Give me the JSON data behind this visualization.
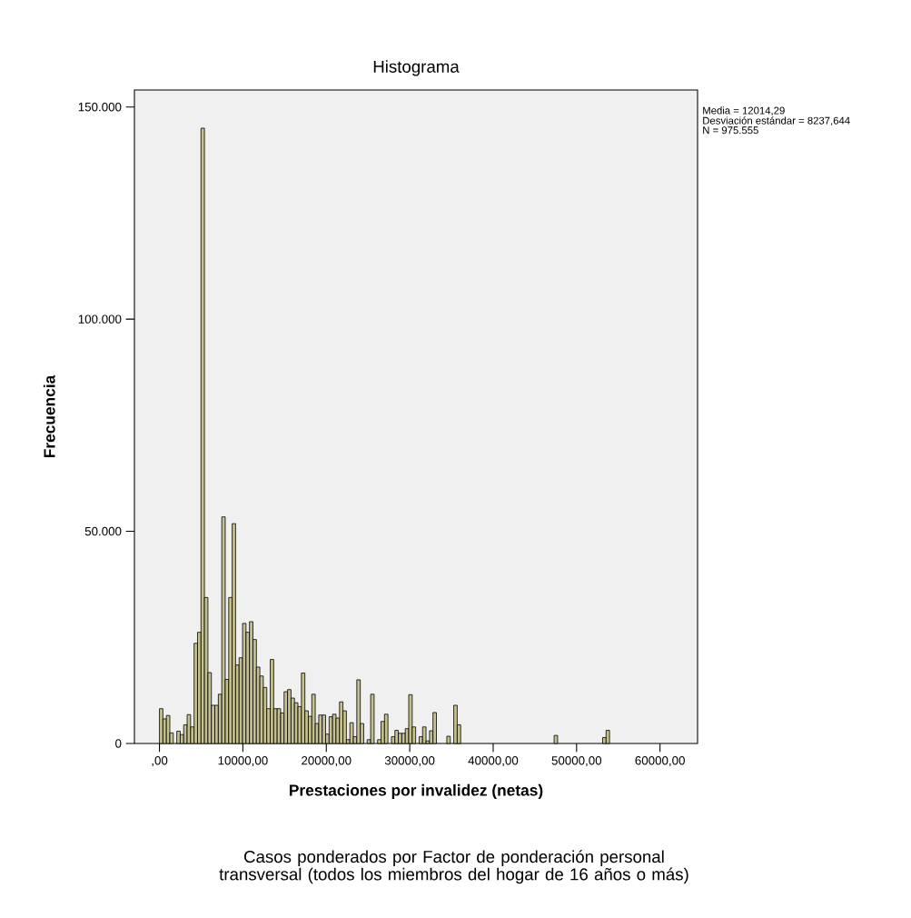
{
  "chart_data": {
    "type": "histogram",
    "title": "Histograma",
    "xlabel": "Prestaciones por invalidez (netas)",
    "ylabel": "Frecuencia",
    "annotations": [
      "Media = 12014,29",
      "Desviación estándar = 8237,644",
      "N = 975.555",
      "Casos ponderados por Factor de ponderación personal transversal (todos los miembros del hogar de 16 años o más)"
    ],
    "bins": [
      0,
      415,
      830,
      1245,
      1660,
      2075,
      2490,
      2905,
      3320,
      3735,
      4150,
      4565,
      4980,
      5395,
      5810,
      6225,
      6640,
      7055,
      7470,
      7885,
      8300,
      8715,
      9130,
      9545,
      9960,
      10375,
      10790,
      11205,
      11620,
      12035,
      12450,
      12865,
      13280,
      13695,
      14110,
      14525,
      14940,
      15355,
      15770,
      16185,
      16600,
      17015,
      17430,
      17845,
      18260,
      18675,
      19090,
      19505,
      19920,
      20335,
      20750,
      21165,
      21580,
      21995,
      22410,
      22825,
      23240,
      23655,
      24070,
      24485,
      24900,
      25315,
      25730,
      26145,
      26560,
      26975,
      27390,
      27805,
      28220,
      28635,
      29050,
      29465,
      29880,
      30295,
      30710,
      31125,
      31540,
      31955,
      32370,
      32785,
      33200,
      33615,
      34030,
      34445,
      34860,
      35275,
      35690,
      36105,
      36520,
      36935,
      37350,
      37765,
      38180,
      38595,
      39010,
      39425,
      39840,
      40255,
      40670,
      41085,
      41500,
      41915,
      42330,
      42745,
      43160,
      43575,
      43990,
      44405,
      44820,
      45235,
      45650,
      46065,
      46480,
      46895,
      47310,
      47725,
      48140,
      48555,
      48970,
      49385,
      49800,
      50215,
      50630,
      51045,
      51460,
      51875,
      52290,
      52705,
      53120,
      53535,
      53950
    ],
    "values": [
      8200,
      5800,
      6600,
      2500,
      0,
      2900,
      2100,
      4400,
      6800,
      3900,
      23600,
      26200,
      145000,
      34400,
      16700,
      9000,
      9000,
      11600,
      53400,
      15100,
      34400,
      51800,
      18500,
      20200,
      28300,
      26200,
      28700,
      24500,
      18000,
      15900,
      13200,
      8200,
      19800,
      8200,
      8200,
      7200,
      12200,
      12700,
      10700,
      9600,
      8700,
      16600,
      7700,
      6400,
      11600,
      4700,
      6700,
      6700,
      2200,
      6300,
      6900,
      6000,
      9800,
      7700,
      900,
      4900,
      1600,
      15000,
      4700,
      0,
      900,
      11600,
      0,
      900,
      5200,
      6900,
      0,
      1600,
      3100,
      2400,
      2400,
      3500,
      11500,
      3900,
      0,
      1600,
      3900,
      600,
      3000,
      7300,
      0,
      0,
      0,
      1700,
      0,
      9000,
      4400,
      0,
      0,
      0,
      0,
      0,
      0,
      0,
      0,
      0,
      0,
      0,
      0,
      0,
      0,
      0,
      0,
      0,
      0,
      0,
      0,
      0,
      0,
      0,
      0,
      0,
      0,
      0,
      1900,
      0,
      0,
      0,
      0,
      0,
      0,
      0,
      0,
      0,
      0,
      0,
      0,
      0,
      1400,
      3100
    ],
    "color": "#c5c08f",
    "xlim": [
      -3000,
      64500
    ],
    "ylim": [
      0,
      154000
    ],
    "xticks": [
      {
        "value": 0,
        "label": ",00"
      },
      {
        "value": 10000,
        "label": "10000,00"
      },
      {
        "value": 20000,
        "label": "20000,00"
      },
      {
        "value": 30000,
        "label": "30000,00"
      },
      {
        "value": 40000,
        "label": "40000,00"
      },
      {
        "value": 50000,
        "label": "50000,00"
      },
      {
        "value": 60000,
        "label": "60000,00"
      }
    ],
    "yticks": [
      0,
      {
        "value": 50000,
        "label": "50.000"
      },
      {
        "value": 100000,
        "label": "100.000"
      },
      {
        "value": 150000,
        "label": "150.000"
      }
    ]
  }
}
